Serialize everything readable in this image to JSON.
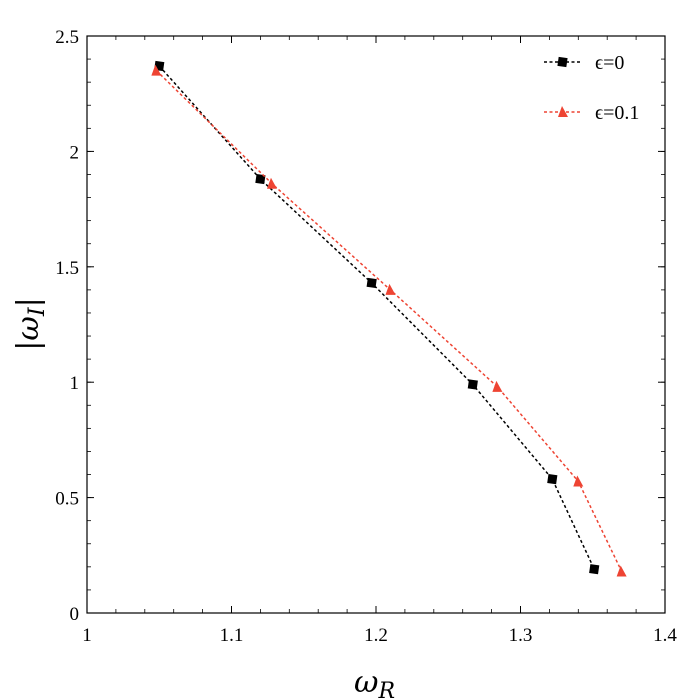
{
  "chart_data": {
    "type": "line",
    "xlabel": "ωR",
    "xlabel_main": "ω",
    "xlabel_sub": "R",
    "ylabel": "|ωI|",
    "ylabel_main": "ω",
    "ylabel_sub": "I",
    "xlim": [
      1.0,
      1.4
    ],
    "ylim": [
      0.0,
      2.5
    ],
    "xticks": [
      1.0,
      1.1,
      1.2,
      1.3,
      1.4
    ],
    "xtick_labels": [
      "1",
      "1.1",
      "1.2",
      "1.3",
      "1.4"
    ],
    "yticks": [
      0.0,
      0.5,
      1.0,
      1.5,
      2.0,
      2.5
    ],
    "ytick_labels": [
      "0",
      "0.5",
      "1",
      "1.5",
      "2",
      "2.5"
    ],
    "grid": false,
    "legend_position": "top-right",
    "series": [
      {
        "name": "ϵ=0",
        "color": "#000000",
        "marker": "square",
        "line_style": "dashed",
        "x": [
          1.05,
          1.12,
          1.197,
          1.267,
          1.322,
          1.351
        ],
        "y": [
          2.37,
          1.88,
          1.43,
          0.99,
          0.58,
          0.19
        ]
      },
      {
        "name": "ϵ=0.1",
        "color": "#ee4433",
        "marker": "triangle",
        "line_style": "dashed",
        "x": [
          1.048,
          1.128,
          1.21,
          1.284,
          1.34,
          1.37
        ],
        "y": [
          2.35,
          1.86,
          1.4,
          0.98,
          0.57,
          0.18
        ]
      }
    ]
  }
}
